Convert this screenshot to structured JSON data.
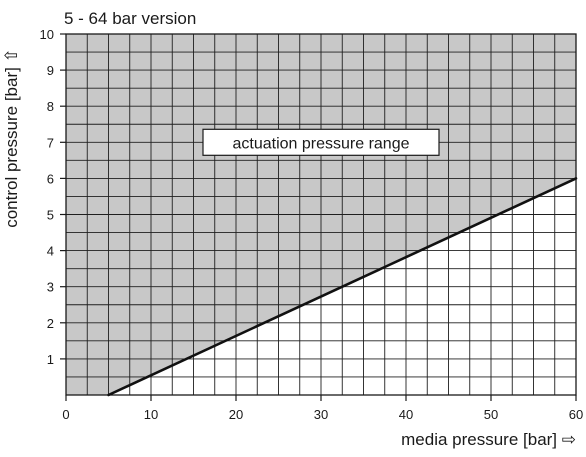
{
  "chart_data": {
    "type": "line",
    "title": "5 - 64 bar version",
    "xlabel": "media pressure [bar] ⇨",
    "ylabel": "control pressure [bar] ⇧",
    "xlim": [
      0,
      60
    ],
    "ylim": [
      0,
      10
    ],
    "x_ticks": [
      0,
      10,
      20,
      30,
      40,
      50,
      60
    ],
    "y_ticks": [
      1,
      2,
      3,
      4,
      5,
      6,
      7,
      8,
      9,
      10
    ],
    "x_tick_labels": [
      "0",
      "10",
      "20",
      "30",
      "40",
      "50",
      "60"
    ],
    "y_tick_labels": [
      "1",
      "2",
      "3",
      "4",
      "5",
      "6",
      "7",
      "8",
      "9",
      "10"
    ],
    "grid": true,
    "series": [
      {
        "x": [
          5,
          60
        ],
        "y": [
          0,
          6
        ]
      }
    ],
    "annotations": [
      {
        "text": "actuation pressure range",
        "x": 30,
        "y": 7
      }
    ],
    "shaded_region": "above line",
    "colors": {
      "shade": "#c8c8c8",
      "grid": "#1f1f1f",
      "line": "#111111"
    }
  }
}
